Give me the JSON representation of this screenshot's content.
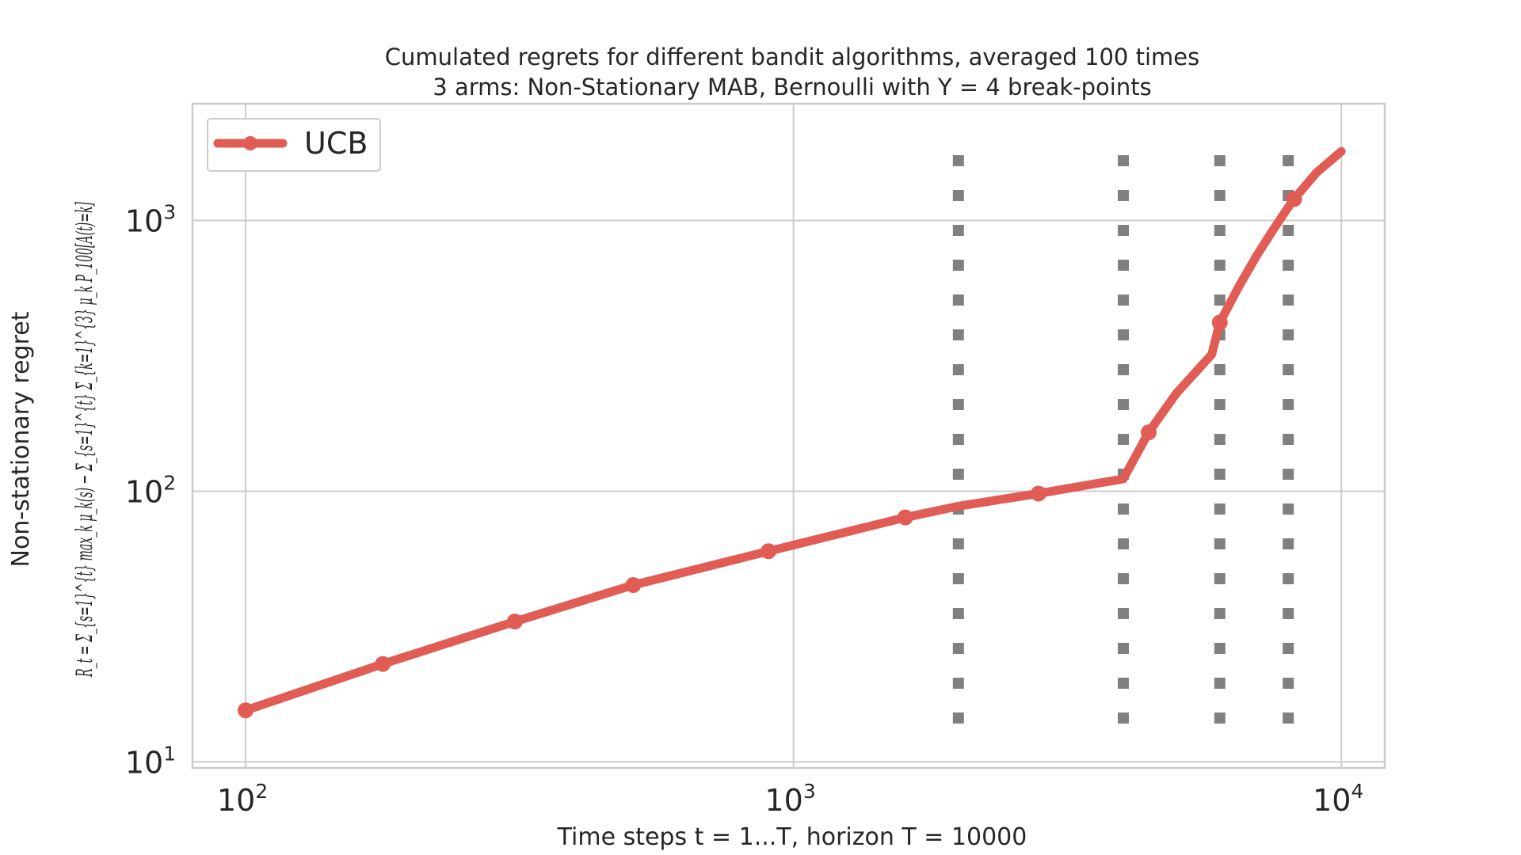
{
  "chart_data": {
    "type": "line",
    "title": "Cumulated regrets for different bandit algorithms, averaged 100 times",
    "subtitle": "3 arms: Non-Stationary MAB, Bernoulli with Υ = 4 break-points",
    "xlabel": "Time steps t = 1...T, horizon T = 10000",
    "ylabel": "Non-stationary regret",
    "ylabel_formula": "R_t = Σ_{s=1}^{t} max_k μ_k(s) − Σ_{s=1}^{t} Σ_{k=1}^{3} μ_k P_100[A(t)=k]",
    "x_scale": "log",
    "y_scale": "log",
    "xlim": [
      80,
      12000
    ],
    "ylim": [
      9.5,
      2700
    ],
    "x_ticks": [
      {
        "value": 100,
        "base": "10",
        "exp": "2"
      },
      {
        "value": 1000,
        "base": "10",
        "exp": "3"
      },
      {
        "value": 10000,
        "base": "10",
        "exp": "4"
      }
    ],
    "y_ticks": [
      {
        "value": 10,
        "base": "10",
        "exp": "1"
      },
      {
        "value": 100,
        "base": "10",
        "exp": "2"
      },
      {
        "value": 1000,
        "base": "10",
        "exp": "3"
      }
    ],
    "grid": true,
    "legend_position": "top-left",
    "break_points": [
      2000,
      4000,
      6000,
      8000
    ],
    "series": [
      {
        "name": "UCB",
        "color": "#e05c54",
        "x": [
          100,
          178,
          310,
          510,
          900,
          1600,
          2000,
          2800,
          4000,
          4450,
          5000,
          5800,
          6000,
          6500,
          7000,
          7500,
          8000,
          8200,
          9000,
          10000
        ],
        "y": [
          15.5,
          23,
          33,
          45,
          60,
          80,
          88,
          98,
          111,
          165,
          230,
          320,
          420,
          570,
          740,
          920,
          1120,
          1200,
          1500,
          1800
        ]
      }
    ],
    "markers": {
      "x": [
        100,
        178,
        310,
        510,
        900,
        1600,
        2800,
        4450,
        6000,
        8200
      ],
      "y": [
        15.5,
        23,
        33,
        45,
        60,
        80,
        98,
        165,
        420,
        1200
      ]
    }
  }
}
